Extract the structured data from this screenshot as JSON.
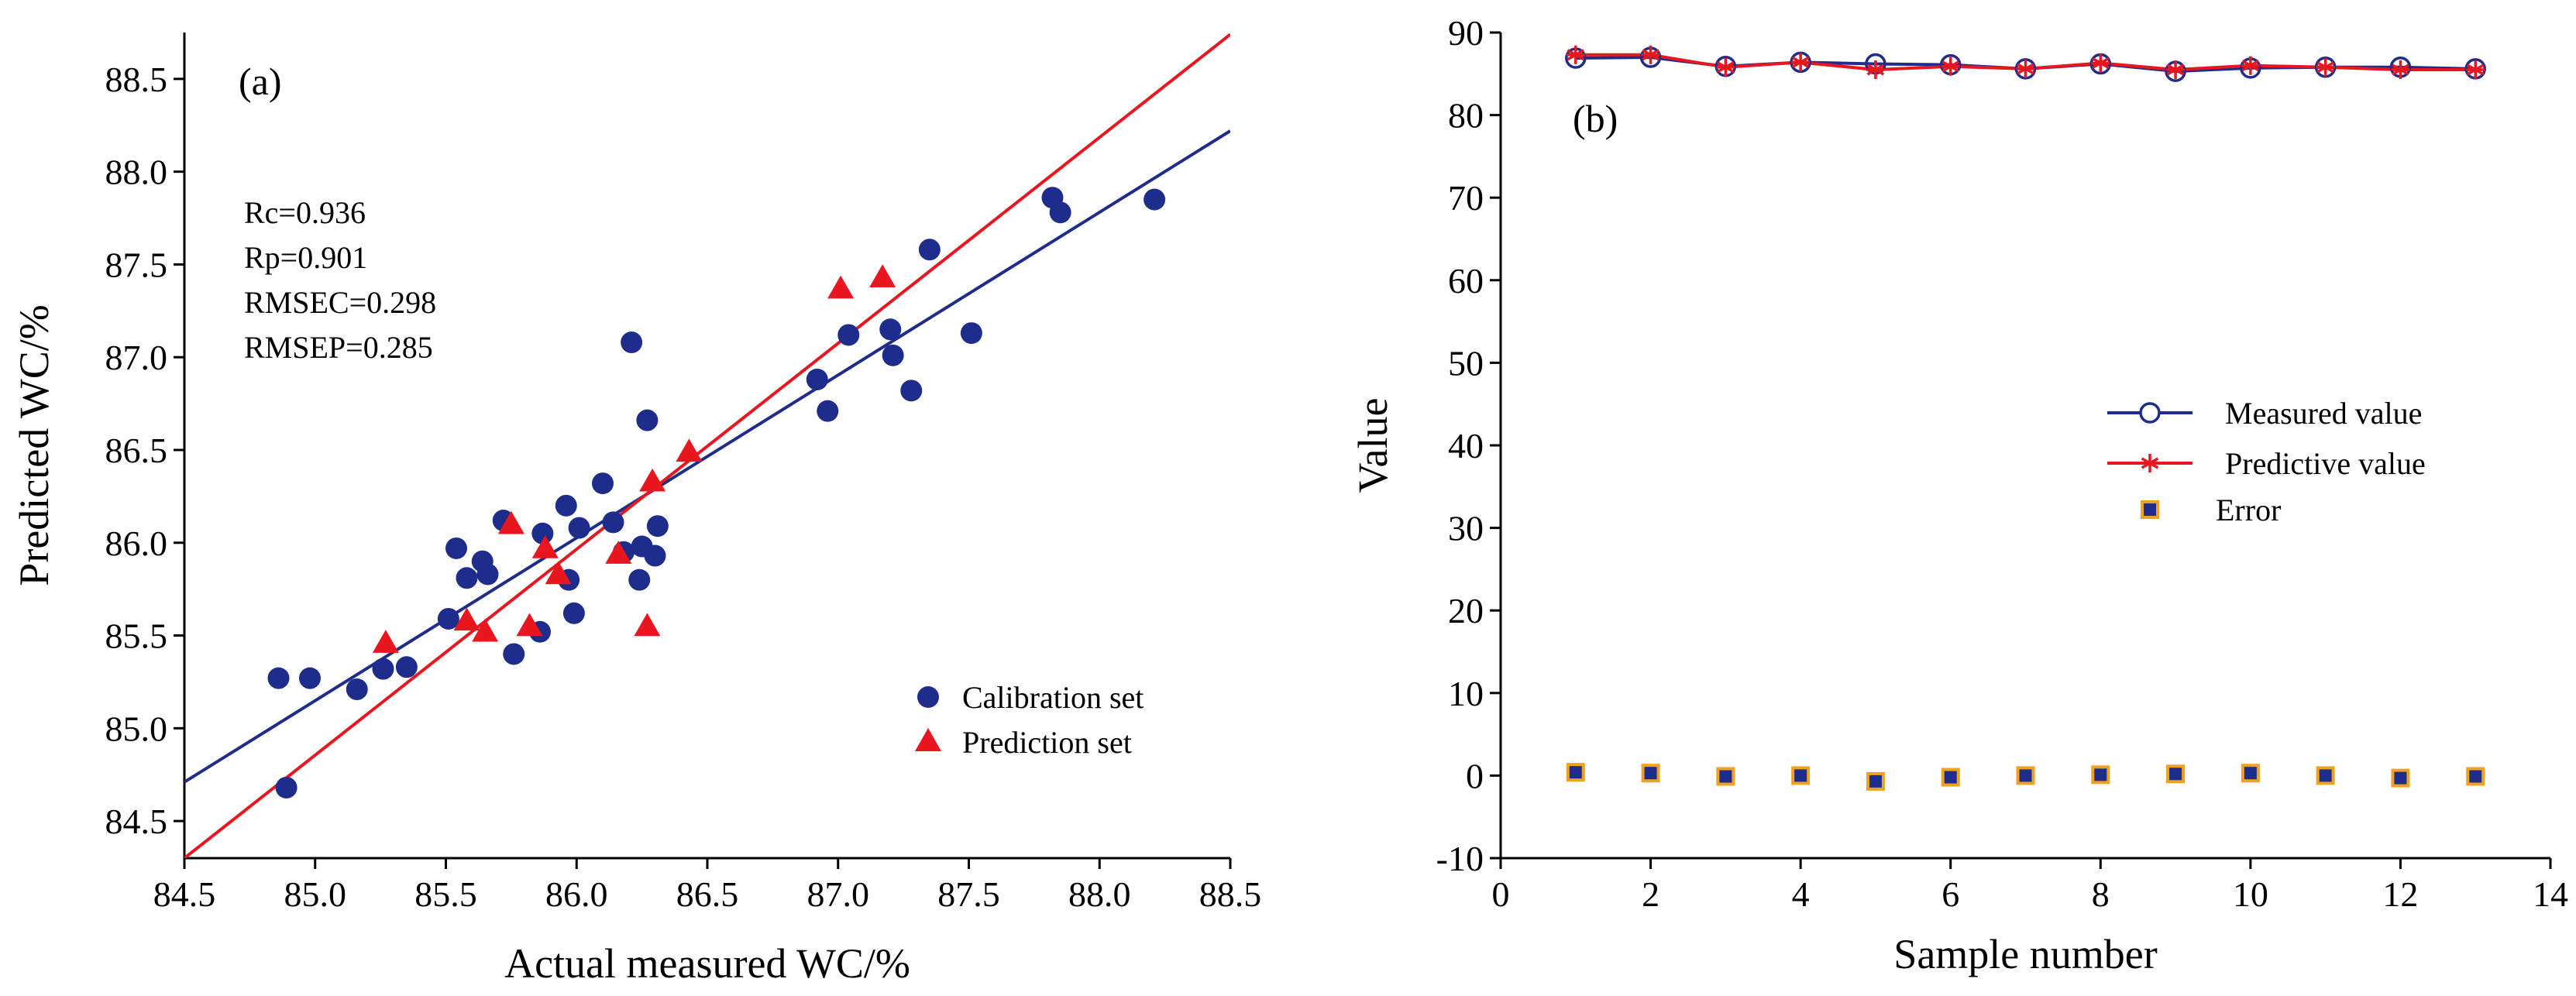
{
  "chart_data": [
    {
      "type": "scatter",
      "panel_label": "(a)",
      "xlabel": "Actual measured WC/%",
      "ylabel": "Predicted WC/%",
      "xlim": [
        84.5,
        88.5
      ],
      "ylim": [
        84.3,
        88.75
      ],
      "xticks": [
        "84.5",
        "85.0",
        "85.5",
        "86.0",
        "86.5",
        "87.0",
        "87.5",
        "88.0",
        "88.5"
      ],
      "yticks": [
        "84.5",
        "85.0",
        "85.5",
        "86.0",
        "86.5",
        "87.0",
        "87.5",
        "88.0",
        "88.5"
      ],
      "grid": false,
      "legend_position": "bottom-right",
      "stats": [
        "Rc=0.936",
        "Rp=0.901",
        "RMSEC=0.298",
        "RMSEP=0.285"
      ],
      "colors": {
        "calibration": "#1e2d8c",
        "prediction": "#e8161e"
      },
      "series": [
        {
          "name": "Calibration set",
          "marker": "circle",
          "color": "#1e2d8c",
          "points": [
            [
              84.86,
              85.27
            ],
            [
              84.98,
              85.27
            ],
            [
              84.89,
              84.68
            ],
            [
              85.16,
              85.21
            ],
            [
              85.26,
              85.32
            ],
            [
              85.35,
              85.33
            ],
            [
              85.51,
              85.59
            ],
            [
              85.54,
              85.97
            ],
            [
              85.58,
              85.81
            ],
            [
              85.64,
              85.9
            ],
            [
              85.66,
              85.83
            ],
            [
              85.72,
              86.12
            ],
            [
              85.76,
              85.4
            ],
            [
              85.86,
              85.52
            ],
            [
              85.87,
              86.05
            ],
            [
              85.96,
              86.2
            ],
            [
              85.97,
              85.8
            ],
            [
              85.99,
              85.62
            ],
            [
              86.01,
              86.08
            ],
            [
              86.1,
              86.32
            ],
            [
              86.14,
              86.11
            ],
            [
              86.18,
              85.95
            ],
            [
              86.21,
              87.08
            ],
            [
              86.24,
              85.8
            ],
            [
              86.25,
              85.98
            ],
            [
              86.27,
              86.66
            ],
            [
              86.3,
              85.93
            ],
            [
              86.31,
              86.09
            ],
            [
              86.92,
              86.88
            ],
            [
              86.96,
              86.71
            ],
            [
              87.04,
              87.12
            ],
            [
              87.2,
              87.15
            ],
            [
              87.21,
              87.01
            ],
            [
              87.28,
              86.82
            ],
            [
              87.35,
              87.58
            ],
            [
              87.51,
              87.13
            ],
            [
              87.82,
              87.86
            ],
            [
              87.85,
              87.78
            ],
            [
              88.21,
              87.85
            ]
          ]
        },
        {
          "name": "Prediction set",
          "marker": "triangle",
          "color": "#e8161e",
          "points": [
            [
              85.27,
              85.46
            ],
            [
              85.58,
              85.58
            ],
            [
              85.65,
              85.52
            ],
            [
              85.75,
              86.1
            ],
            [
              85.82,
              85.55
            ],
            [
              85.88,
              85.97
            ],
            [
              85.93,
              85.83
            ],
            [
              86.16,
              85.94
            ],
            [
              86.27,
              85.55
            ],
            [
              86.29,
              86.33
            ],
            [
              86.43,
              86.49
            ],
            [
              87.01,
              87.37
            ],
            [
              87.17,
              87.43
            ]
          ]
        }
      ],
      "fit_lines": [
        {
          "series": "Calibration set",
          "color": "#1e2d8c",
          "x": [
            84.5,
            88.5
          ],
          "y": [
            84.71,
            88.22
          ]
        },
        {
          "series": "Prediction set",
          "color": "#e8161e",
          "x": [
            84.5,
            88.5
          ],
          "y": [
            84.3,
            88.74
          ]
        }
      ]
    },
    {
      "type": "line",
      "panel_label": "(b)",
      "xlabel": "Sample number",
      "ylabel": "Value",
      "xlim": [
        0,
        14
      ],
      "ylim": [
        -10,
        90
      ],
      "xticks": [
        "0",
        "2",
        "4",
        "6",
        "8",
        "10",
        "12",
        "14"
      ],
      "yticks": [
        "-10",
        "0",
        "10",
        "20",
        "30",
        "40",
        "50",
        "60",
        "70",
        "80",
        "90"
      ],
      "grid": false,
      "legend_position": "center-right",
      "x": [
        1,
        2,
        3,
        4,
        5,
        6,
        7,
        8,
        9,
        10,
        11,
        12,
        13
      ],
      "colors": {
        "measured": "#1e2d8c",
        "predictive": "#e8161e",
        "error_fill": "#1e2d8c",
        "error_edge": "#f0a21e"
      },
      "series": [
        {
          "name": "Measured value",
          "marker": "open-circle",
          "color": "#1e2d8c",
          "values": [
            86.9,
            87.0,
            85.9,
            86.4,
            86.2,
            86.1,
            85.6,
            86.2,
            85.3,
            85.7,
            85.8,
            85.8,
            85.6
          ]
        },
        {
          "name": "Predictive value",
          "marker": "asterisk",
          "color": "#e8161e",
          "values": [
            87.3,
            87.3,
            85.8,
            86.4,
            85.5,
            85.9,
            85.6,
            86.3,
            85.5,
            86.0,
            85.8,
            85.5,
            85.5
          ]
        },
        {
          "name": "Error",
          "marker": "square",
          "color": "#1e2d8c",
          "values": [
            0.4,
            0.3,
            -0.1,
            0.0,
            -0.7,
            -0.2,
            0.0,
            0.1,
            0.2,
            0.3,
            0.0,
            -0.3,
            -0.1
          ]
        }
      ]
    }
  ]
}
